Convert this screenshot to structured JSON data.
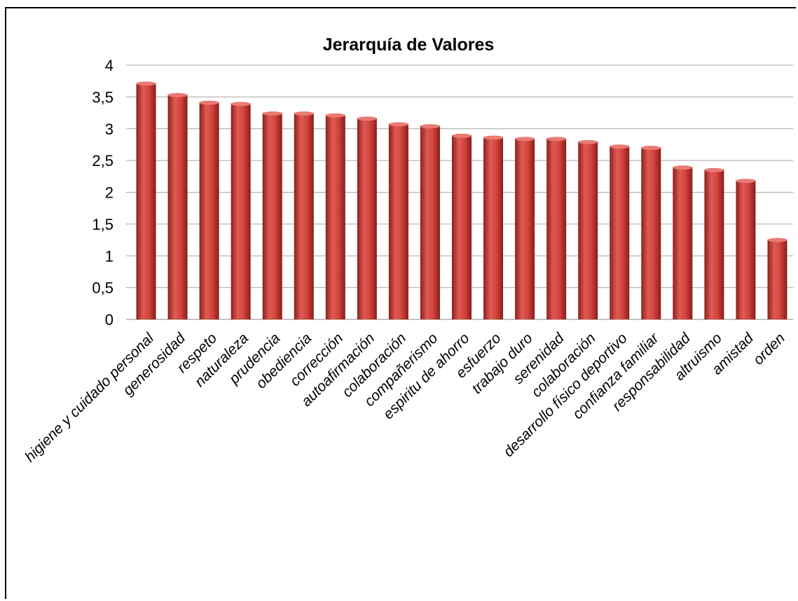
{
  "chart_data": {
    "type": "bar",
    "title": "Jerarquía de Valores",
    "xlabel": "",
    "ylabel": "",
    "ylim": [
      0,
      4
    ],
    "yticks": [
      "0",
      "0,5",
      "1",
      "1,5",
      "2",
      "2,5",
      "3",
      "3,5",
      "4"
    ],
    "grid": true,
    "legend": "none",
    "bar_color": "#c0332f",
    "categories": [
      "higiene y cuidado personal",
      "generosidad",
      "respeto",
      "naturaleza",
      "prudencia",
      "obediencia",
      "corrección",
      "autoafirmación",
      "colaboración",
      "compañerismo",
      "espiritu de ahorro",
      "esfuerzo",
      "trabajo duro",
      "serenidad",
      "colaboración",
      "desarrollo físico deportivo",
      "confianza familiar",
      "responsabilidad",
      "altruismo",
      "amistad",
      "orden"
    ],
    "values": [
      3.72,
      3.54,
      3.42,
      3.4,
      3.25,
      3.25,
      3.22,
      3.17,
      3.08,
      3.05,
      2.9,
      2.87,
      2.85,
      2.85,
      2.8,
      2.73,
      2.71,
      2.4,
      2.36,
      2.19,
      1.26
    ]
  }
}
